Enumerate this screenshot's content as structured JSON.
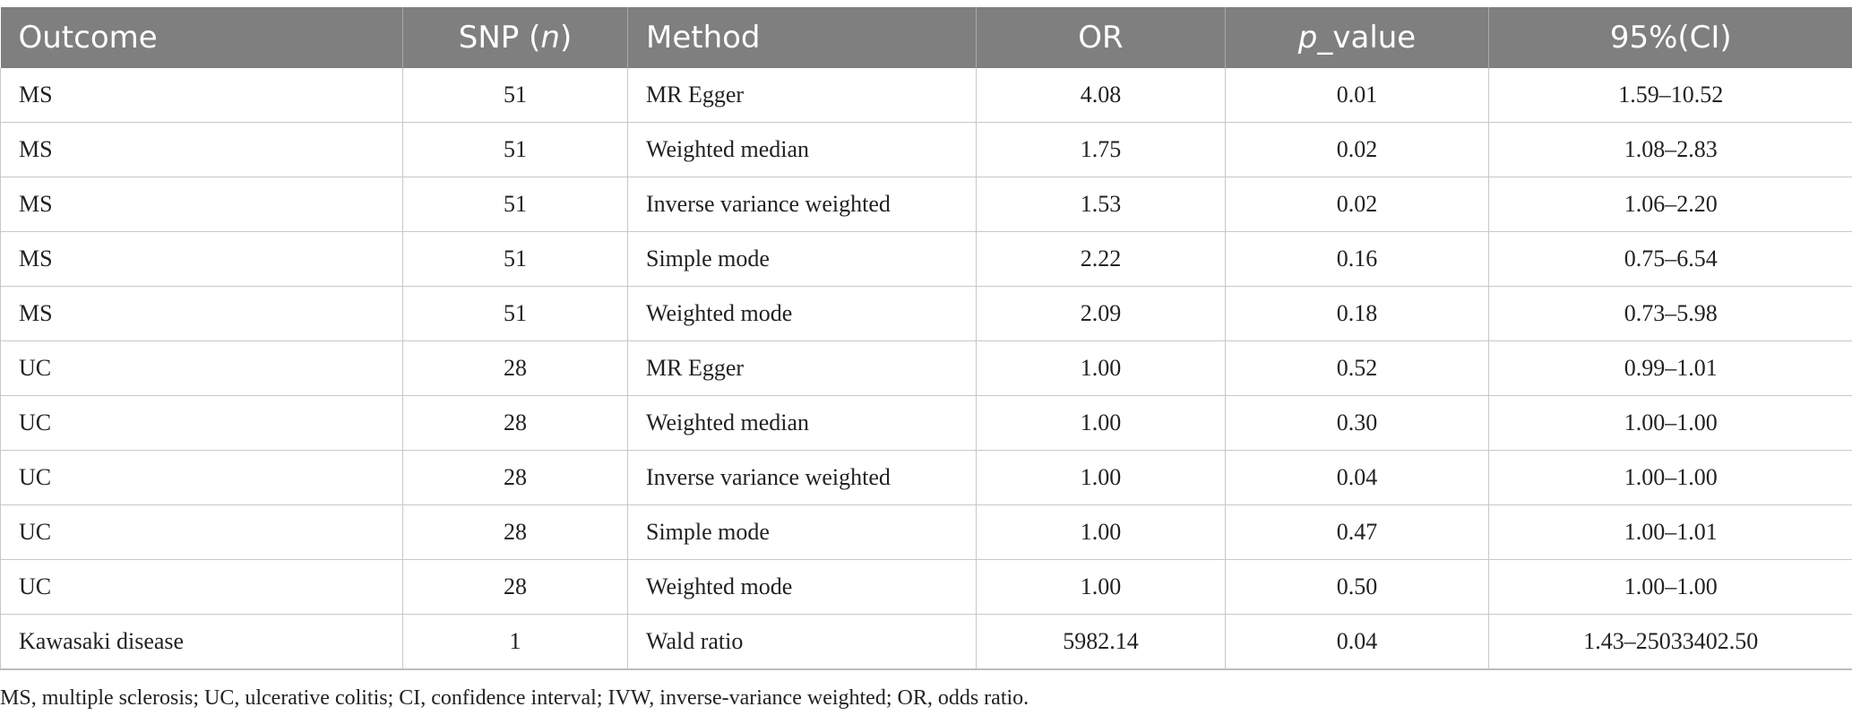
{
  "table": {
    "headers": [
      {
        "text": "Outcome"
      },
      {
        "pre": "SNP (",
        "ital": "n",
        "post": ")"
      },
      {
        "text": "Method"
      },
      {
        "text": "OR"
      },
      {
        "ital": "p",
        "post": "_value"
      },
      {
        "text": "95%(CI)"
      }
    ],
    "rows": [
      [
        "MS",
        "51",
        "MR Egger",
        "4.08",
        "0.01",
        "1.59–10.52"
      ],
      [
        "MS",
        "51",
        "Weighted median",
        "1.75",
        "0.02",
        "1.08–2.83"
      ],
      [
        "MS",
        "51",
        "Inverse variance weighted",
        "1.53",
        "0.02",
        "1.06–2.20"
      ],
      [
        "MS",
        "51",
        "Simple mode",
        "2.22",
        "0.16",
        "0.75–6.54"
      ],
      [
        "MS",
        "51",
        "Weighted mode",
        "2.09",
        "0.18",
        "0.73–5.98"
      ],
      [
        "UC",
        "28",
        "MR Egger",
        "1.00",
        "0.52",
        "0.99–1.01"
      ],
      [
        "UC",
        "28",
        "Weighted median",
        "1.00",
        "0.30",
        "1.00–1.00"
      ],
      [
        "UC",
        "28",
        "Inverse variance weighted",
        "1.00",
        "0.04",
        "1.00–1.00"
      ],
      [
        "UC",
        "28",
        "Simple mode",
        "1.00",
        "0.47",
        "1.00–1.01"
      ],
      [
        "UC",
        "28",
        "Weighted mode",
        "1.00",
        "0.50",
        "1.00–1.00"
      ],
      [
        "Kawasaki disease",
        "1",
        "Wald ratio",
        "5982.14",
        "0.04",
        "1.43–25033402.50"
      ]
    ]
  },
  "footnote": "MS, multiple sclerosis; UC, ulcerative colitis; CI, confidence interval; IVW, inverse-variance weighted; OR, odds ratio.",
  "colors": {
    "header_bg": "#7f7f7f",
    "header_text": "#ffffff",
    "grid": "#c8c8c8",
    "body_text": "#222222"
  }
}
